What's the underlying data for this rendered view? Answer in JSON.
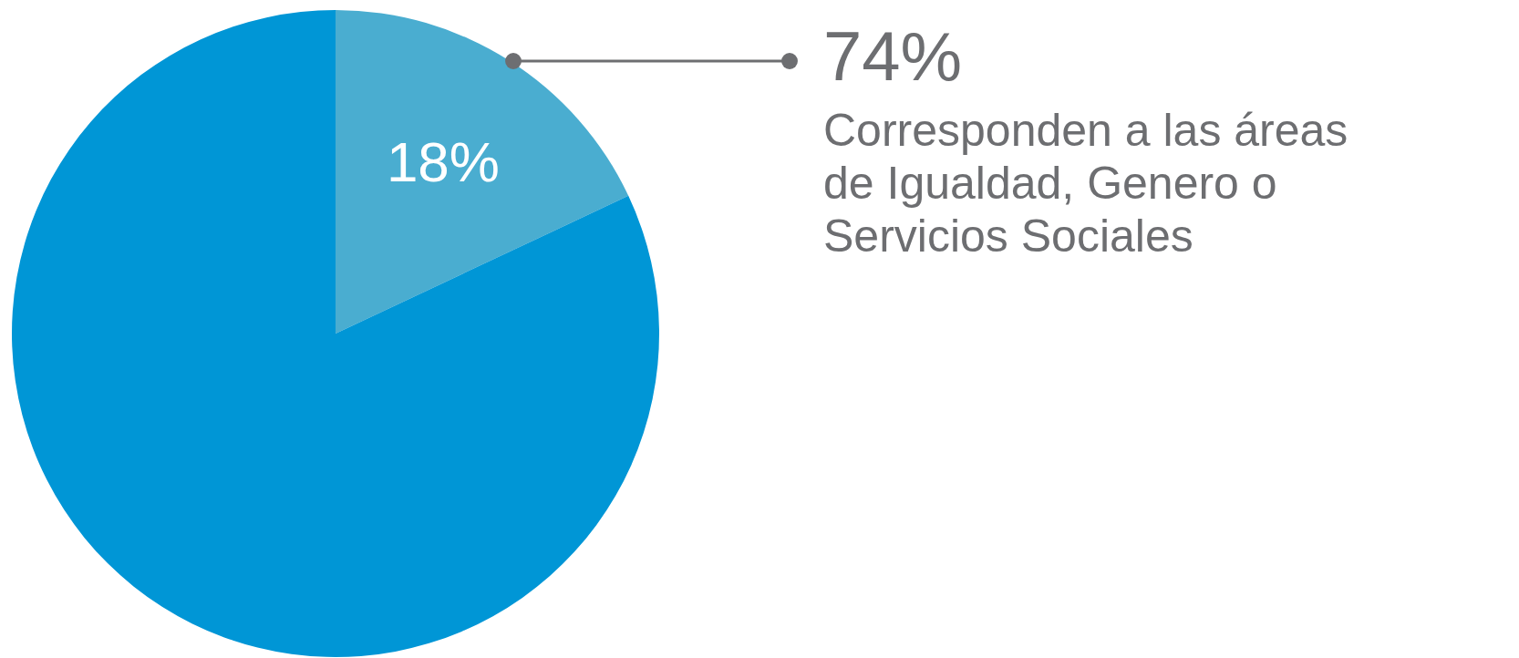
{
  "chart_data": {
    "type": "pie",
    "categories": [
      null,
      null
    ],
    "values": [
      18,
      82
    ],
    "colors": [
      "#4aadd0",
      "#0096d6"
    ],
    "value_labels": [
      "18%",
      null
    ],
    "annotations": [
      "74%",
      "Corresponden a las áreas de Igualdad, Genero o Servicios Sociales"
    ]
  }
}
